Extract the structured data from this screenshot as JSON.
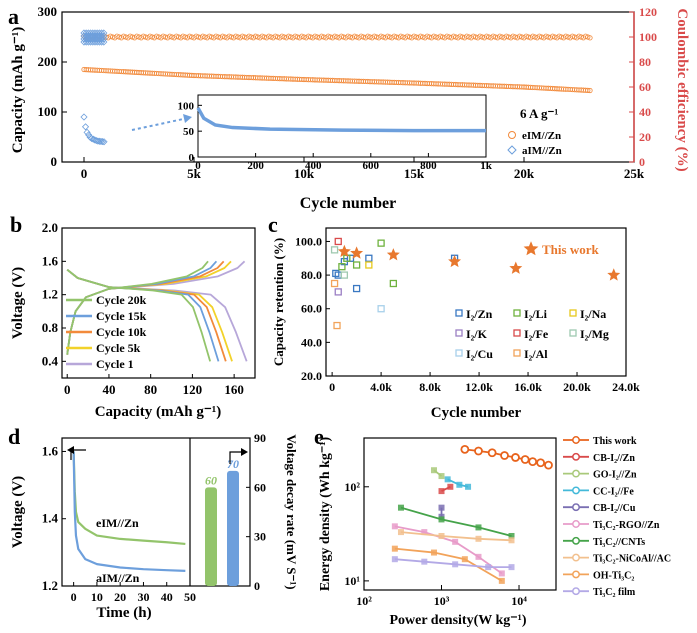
{
  "colors": {
    "orange": "#f28a3b",
    "blue": "#6d9fdc",
    "red_axis": "#d94a4a",
    "green": "#93c46b",
    "yellow": "#f2d22a",
    "lavender": "#b7a7d9"
  },
  "chart_data": [
    {
      "panel": "a",
      "type": "scatter",
      "xlabel": "Cycle number",
      "ylabel": "Capacity (mAh g⁻¹)",
      "y2label": "Coulombic efficiency (%)",
      "xlim": [
        -1000,
        25000
      ],
      "ylim": [
        0,
        300
      ],
      "y2lim": [
        0,
        120
      ],
      "xticks": [
        "0",
        "5k",
        "10k",
        "15k",
        "20k",
        "25k"
      ],
      "yticks": [
        "0",
        "100",
        "200",
        "300"
      ],
      "y2ticks": [
        "0",
        "20",
        "40",
        "60",
        "80",
        "100",
        "120"
      ],
      "legend_title": "6 A g⁻¹",
      "series": [
        {
          "name": "eIM//Zn",
          "axis": "capacity",
          "x": [
            0,
            5000,
            10000,
            15000,
            20000,
            23000
          ],
          "y": [
            185,
            173,
            165,
            158,
            150,
            143
          ]
        },
        {
          "name": "eIM//Zn",
          "axis": "efficiency",
          "x": [
            0,
            23000
          ],
          "y": [
            100,
            100
          ]
        },
        {
          "name": "aIM//Zn",
          "axis": "capacity",
          "x": [
            0,
            100,
            300,
            600,
            1000
          ],
          "y": [
            90,
            62,
            48,
            42,
            40
          ]
        },
        {
          "name": "aIM//Zn",
          "axis": "efficiency",
          "x": [
            0,
            1000
          ],
          "y": [
            100,
            100
          ]
        }
      ],
      "inset": {
        "xlim": [
          0,
          1000
        ],
        "ylim": [
          0,
          100
        ],
        "xticks": [
          "0",
          "200",
          "400",
          "600",
          "800",
          "1k"
        ],
        "yticks": [
          "0",
          "50",
          "100"
        ],
        "series": [
          {
            "name": "aIM//Zn",
            "x": [
              0,
              20,
              60,
              120,
              250,
              500,
              750,
              1000
            ],
            "y": [
              95,
              75,
              62,
              57,
              54,
              52,
              51,
              51
            ]
          }
        ]
      }
    },
    {
      "panel": "b",
      "type": "line",
      "xlabel": "Capacity (mAh g⁻¹)",
      "ylabel": "Voltage (V)",
      "xlim": [
        -5,
        180
      ],
      "ylim": [
        0.2,
        2.0
      ],
      "xticks": [
        "0",
        "40",
        "80",
        "120",
        "160"
      ],
      "yticks": [
        "0.4",
        "0.8",
        "1.2",
        "1.6",
        "2.0"
      ],
      "series": [
        {
          "name": "Cycle 20k",
          "color": "#93c46b",
          "charge_end": 135,
          "discharge_end": 137
        },
        {
          "name": "Cycle 15k",
          "color": "#6d9fdc",
          "charge_end": 143,
          "discharge_end": 145
        },
        {
          "name": "Cycle 10k",
          "color": "#f28a3b",
          "charge_end": 150,
          "discharge_end": 152
        },
        {
          "name": "Cycle 5k",
          "color": "#f2d22a",
          "charge_end": 157,
          "discharge_end": 158
        },
        {
          "name": "Cycle 1",
          "color": "#b7a7d9",
          "charge_end": 170,
          "discharge_end": 172
        }
      ]
    },
    {
      "panel": "c",
      "type": "scatter",
      "xlabel": "Cycle number",
      "ylabel": "Capacity retention (%)",
      "xlim": [
        -500,
        24000
      ],
      "ylim": [
        20,
        100
      ],
      "xticks": [
        "0",
        "4.0k",
        "8.0k",
        "12.0k",
        "16.0k",
        "20.0k",
        "24.0k"
      ],
      "yticks": [
        "20.0",
        "40.0",
        "60.0",
        "80.0",
        "100.0"
      ],
      "this_work": {
        "name": "This work",
        "x": [
          1000,
          2000,
          5000,
          10000,
          15000,
          23000
        ],
        "y": [
          94,
          93,
          92,
          88,
          84,
          80
        ]
      },
      "series": [
        {
          "name": "I₂/Zn",
          "color": "#3a78c2",
          "x": [
            300,
            500,
            1000,
            1500,
            2000,
            3000,
            10000
          ],
          "y": [
            81,
            80,
            88,
            90,
            72,
            90,
            90
          ]
        },
        {
          "name": "I₂/Li",
          "color": "#6fb23e",
          "x": [
            800,
            1200,
            2000,
            4000,
            5000
          ],
          "y": [
            85,
            90,
            86,
            99,
            75
          ]
        },
        {
          "name": "I₂/Na",
          "color": "#e6c81c",
          "x": [
            3000
          ],
          "y": [
            86
          ]
        },
        {
          "name": "I₂/K",
          "color": "#9b7fc4",
          "x": [
            500
          ],
          "y": [
            70
          ]
        },
        {
          "name": "I₂/Fe",
          "color": "#d94a4a",
          "x": [
            500
          ],
          "y": [
            100
          ]
        },
        {
          "name": "I₂/Mg",
          "color": "#9fc9b0",
          "x": [
            200,
            1000
          ],
          "y": [
            95,
            80
          ]
        },
        {
          "name": "I₂/Cu",
          "color": "#a8d0ea",
          "x": [
            4000
          ],
          "y": [
            60
          ]
        },
        {
          "name": "I₂/Al",
          "color": "#f2a35a",
          "x": [
            200,
            400
          ],
          "y": [
            75,
            50
          ]
        }
      ]
    },
    {
      "panel": "d",
      "type": "line",
      "xlabel": "Time (h)",
      "ylabel": "Voltage (V)",
      "y2label": "Voltage decay rate (mV S⁻¹)",
      "xlim": [
        -5,
        50
      ],
      "ylim": [
        1.2,
        1.62
      ],
      "y2lim": [
        0,
        90
      ],
      "xticks": [
        "0",
        "10",
        "20",
        "30",
        "40",
        "50"
      ],
      "yticks": [
        "1.2",
        "1.4",
        "1.6"
      ],
      "y2ticks": [
        "0",
        "30",
        "60",
        "90"
      ],
      "series": [
        {
          "name": "eIM//Zn",
          "color": "#93c46b",
          "x": [
            0,
            0.5,
            1,
            2,
            5,
            10,
            20,
            30,
            40,
            48
          ],
          "y": [
            1.6,
            1.48,
            1.42,
            1.39,
            1.37,
            1.35,
            1.34,
            1.335,
            1.33,
            1.325
          ]
        },
        {
          "name": "aIM//Zn",
          "color": "#6d9fdc",
          "x": [
            0,
            0.5,
            1,
            2,
            5,
            10,
            20,
            30,
            40,
            48
          ],
          "y": [
            1.6,
            1.42,
            1.35,
            1.31,
            1.28,
            1.265,
            1.255,
            1.25,
            1.247,
            1.245
          ]
        }
      ],
      "bars": [
        {
          "name": "eIM//Zn",
          "value": 60,
          "label": "60",
          "color": "#93c46b"
        },
        {
          "name": "aIM//Zn",
          "value": 70,
          "label": "70",
          "color": "#6d9fdc"
        }
      ]
    },
    {
      "panel": "e",
      "type": "line",
      "xlabel": "Power density(W kg⁻¹)",
      "ylabel": "Energy density (Wh kg⁻¹)",
      "xscale": "log",
      "yscale": "log",
      "xlim": [
        100,
        30000
      ],
      "ylim": [
        8,
        300
      ],
      "xticks": [
        "10²",
        "10³",
        "10⁴"
      ],
      "yticks": [
        "10¹",
        "10²"
      ],
      "series": [
        {
          "name": "This work",
          "color": "#e8631c",
          "x": [
            2000,
            3000,
            4500,
            6500,
            9000,
            12000,
            15000,
            19000,
            24000
          ],
          "y": [
            250,
            240,
            230,
            215,
            205,
            195,
            185,
            180,
            170
          ]
        },
        {
          "name": "CB-I₂//Zn",
          "color": "#d94a4a",
          "x": [
            1000,
            1300
          ],
          "y": [
            90,
            100
          ]
        },
        {
          "name": "GO-I₂//Zn",
          "color": "#a9c97a",
          "x": [
            800,
            1000
          ],
          "y": [
            150,
            130
          ]
        },
        {
          "name": "CC-I₂//Fe",
          "color": "#43b9d9",
          "x": [
            1200,
            1700,
            2200
          ],
          "y": [
            120,
            105,
            100
          ]
        },
        {
          "name": "CB-I₂//Cu",
          "color": "#7a6fb2",
          "x": [
            1000,
            1000
          ],
          "y": [
            60,
            48
          ]
        },
        {
          "name": "Ti₃C₂-RGO//Zn",
          "color": "#e79bc9",
          "x": [
            250,
            600,
            1500,
            3000,
            6000
          ],
          "y": [
            38,
            33,
            26,
            18,
            12
          ]
        },
        {
          "name": "Ti₃C₂//CNTs",
          "color": "#45a34a",
          "x": [
            300,
            1000,
            3000,
            8000
          ],
          "y": [
            60,
            45,
            37,
            30
          ]
        },
        {
          "name": "Ti₃C₂-NiCoAl//AC",
          "color": "#f2c08e",
          "x": [
            300,
            1000,
            3000,
            8000
          ],
          "y": [
            33,
            30,
            28,
            27
          ]
        },
        {
          "name": "OH-Ti₃C₂",
          "color": "#f2a35a",
          "x": [
            250,
            800,
            2000,
            6000
          ],
          "y": [
            22,
            20,
            17,
            10
          ]
        },
        {
          "name": "Ti₃C₂ film",
          "color": "#b3a9e6",
          "x": [
            250,
            600,
            1500,
            4000,
            8000
          ],
          "y": [
            17,
            16,
            15,
            14,
            14
          ]
        }
      ]
    }
  ]
}
